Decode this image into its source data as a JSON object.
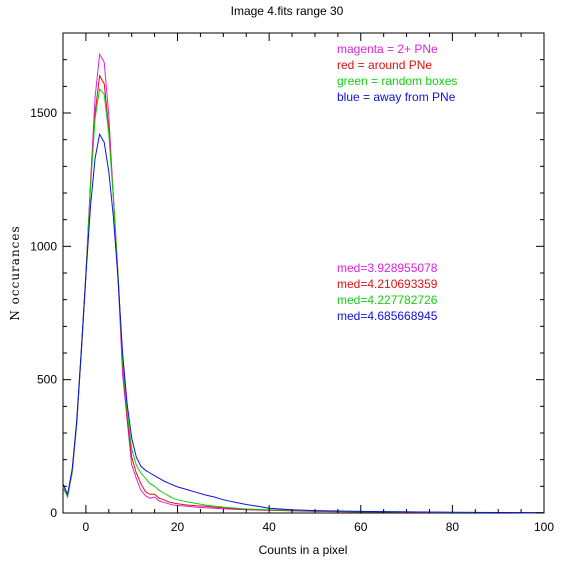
{
  "chart_data": {
    "type": "line",
    "title": "Image 4.fits   range 30",
    "xlabel": "Counts in a pixel",
    "ylabel": "N  occurances",
    "xlim": [
      -5,
      100
    ],
    "ylim": [
      0,
      1800
    ],
    "x_ticks": [
      0,
      20,
      40,
      60,
      80,
      100
    ],
    "y_ticks": [
      0,
      500,
      1000,
      1500
    ],
    "x_tick_labels": [
      "0",
      "20",
      "40",
      "60",
      "80",
      "100"
    ],
    "y_tick_labels": [
      "0",
      "500",
      "1000",
      "1500"
    ],
    "grid": false,
    "legend": [
      {
        "text": "magenta = 2+ PNe",
        "color": "#e020e0"
      },
      {
        "text": "red = around PNe",
        "color": "#e01010"
      },
      {
        "text": "green = random boxes",
        "color": "#10d010"
      },
      {
        "text": "blue = away from PNe",
        "color": "#1010e0"
      }
    ],
    "medians": [
      {
        "text": "med=3.928955078",
        "color": "#e020e0"
      },
      {
        "text": "med=4.210693359",
        "color": "#e01010"
      },
      {
        "text": "med=4.227782726",
        "color": "#10d010"
      },
      {
        "text": "med=4.685668945",
        "color": "#1010e0"
      }
    ],
    "series": [
      {
        "color": "#e020e0",
        "points": [
          [
            -5,
            95
          ],
          [
            -4,
            60
          ],
          [
            -3,
            150
          ],
          [
            -2,
            330
          ],
          [
            -1,
            600
          ],
          [
            0,
            890
          ],
          [
            1,
            1240
          ],
          [
            2,
            1560
          ],
          [
            3,
            1720
          ],
          [
            4,
            1690
          ],
          [
            5,
            1490
          ],
          [
            6,
            1180
          ],
          [
            7,
            880
          ],
          [
            8,
            520
          ],
          [
            9,
            350
          ],
          [
            10,
            180
          ],
          [
            11,
            130
          ],
          [
            12,
            85
          ],
          [
            13,
            65
          ],
          [
            14,
            55
          ],
          [
            15,
            60
          ],
          [
            16,
            45
          ],
          [
            17,
            40
          ],
          [
            18,
            35
          ],
          [
            19,
            30
          ],
          [
            20,
            28
          ],
          [
            22,
            25
          ],
          [
            24,
            22
          ],
          [
            26,
            20
          ],
          [
            28,
            18
          ],
          [
            30,
            16
          ],
          [
            32,
            14
          ],
          [
            35,
            12
          ],
          [
            40,
            10
          ],
          [
            45,
            8
          ],
          [
            50,
            6
          ],
          [
            60,
            4
          ],
          [
            70,
            3
          ],
          [
            80,
            2
          ],
          [
            90,
            2
          ],
          [
            100,
            1
          ]
        ]
      },
      {
        "color": "#e01010",
        "points": [
          [
            -5,
            100
          ],
          [
            -4,
            65
          ],
          [
            -3,
            160
          ],
          [
            -2,
            340
          ],
          [
            -1,
            610
          ],
          [
            0,
            900
          ],
          [
            1,
            1230
          ],
          [
            2,
            1500
          ],
          [
            3,
            1640
          ],
          [
            4,
            1610
          ],
          [
            5,
            1440
          ],
          [
            6,
            1190
          ],
          [
            7,
            900
          ],
          [
            8,
            560
          ],
          [
            9,
            360
          ],
          [
            10,
            210
          ],
          [
            11,
            150
          ],
          [
            12,
            110
          ],
          [
            13,
            80
          ],
          [
            14,
            70
          ],
          [
            15,
            70
          ],
          [
            16,
            55
          ],
          [
            17,
            50
          ],
          [
            18,
            42
          ],
          [
            19,
            38
          ],
          [
            20,
            35
          ],
          [
            22,
            30
          ],
          [
            24,
            27
          ],
          [
            26,
            25
          ],
          [
            28,
            22
          ],
          [
            30,
            20
          ],
          [
            32,
            17
          ],
          [
            35,
            14
          ],
          [
            40,
            11
          ],
          [
            45,
            9
          ],
          [
            50,
            7
          ],
          [
            60,
            5
          ],
          [
            70,
            3
          ],
          [
            80,
            2
          ],
          [
            90,
            2
          ],
          [
            100,
            1
          ]
        ]
      },
      {
        "color": "#10d010",
        "points": [
          [
            -5,
            100
          ],
          [
            -4,
            62
          ],
          [
            -3,
            155
          ],
          [
            -2,
            335
          ],
          [
            -1,
            600
          ],
          [
            0,
            890
          ],
          [
            1,
            1220
          ],
          [
            2,
            1480
          ],
          [
            3,
            1590
          ],
          [
            4,
            1570
          ],
          [
            5,
            1420
          ],
          [
            6,
            1180
          ],
          [
            7,
            890
          ],
          [
            8,
            570
          ],
          [
            9,
            380
          ],
          [
            10,
            240
          ],
          [
            11,
            180
          ],
          [
            12,
            150
          ],
          [
            13,
            130
          ],
          [
            14,
            110
          ],
          [
            15,
            100
          ],
          [
            16,
            85
          ],
          [
            17,
            75
          ],
          [
            18,
            65
          ],
          [
            19,
            55
          ],
          [
            20,
            50
          ],
          [
            22,
            42
          ],
          [
            24,
            36
          ],
          [
            26,
            30
          ],
          [
            28,
            26
          ],
          [
            30,
            22
          ],
          [
            32,
            19
          ],
          [
            35,
            15
          ],
          [
            40,
            12
          ],
          [
            45,
            10
          ],
          [
            50,
            8
          ],
          [
            60,
            5
          ],
          [
            70,
            4
          ],
          [
            80,
            2
          ],
          [
            90,
            2
          ],
          [
            100,
            1
          ]
        ]
      },
      {
        "color": "#1010e0",
        "points": [
          [
            -5,
            110
          ],
          [
            -4,
            70
          ],
          [
            -3,
            165
          ],
          [
            -2,
            345
          ],
          [
            -1,
            610
          ],
          [
            0,
            890
          ],
          [
            1,
            1150
          ],
          [
            2,
            1330
          ],
          [
            3,
            1420
          ],
          [
            4,
            1390
          ],
          [
            5,
            1280
          ],
          [
            6,
            1110
          ],
          [
            7,
            880
          ],
          [
            8,
            600
          ],
          [
            9,
            410
          ],
          [
            10,
            280
          ],
          [
            11,
            210
          ],
          [
            12,
            175
          ],
          [
            13,
            160
          ],
          [
            14,
            150
          ],
          [
            15,
            140
          ],
          [
            16,
            130
          ],
          [
            17,
            120
          ],
          [
            18,
            112
          ],
          [
            19,
            105
          ],
          [
            20,
            98
          ],
          [
            22,
            88
          ],
          [
            24,
            78
          ],
          [
            26,
            68
          ],
          [
            28,
            60
          ],
          [
            30,
            50
          ],
          [
            32,
            42
          ],
          [
            35,
            32
          ],
          [
            38,
            24
          ],
          [
            40,
            18
          ],
          [
            45,
            12
          ],
          [
            50,
            9
          ],
          [
            60,
            6
          ],
          [
            70,
            4
          ],
          [
            80,
            3
          ],
          [
            90,
            2
          ],
          [
            100,
            1
          ]
        ]
      }
    ]
  }
}
